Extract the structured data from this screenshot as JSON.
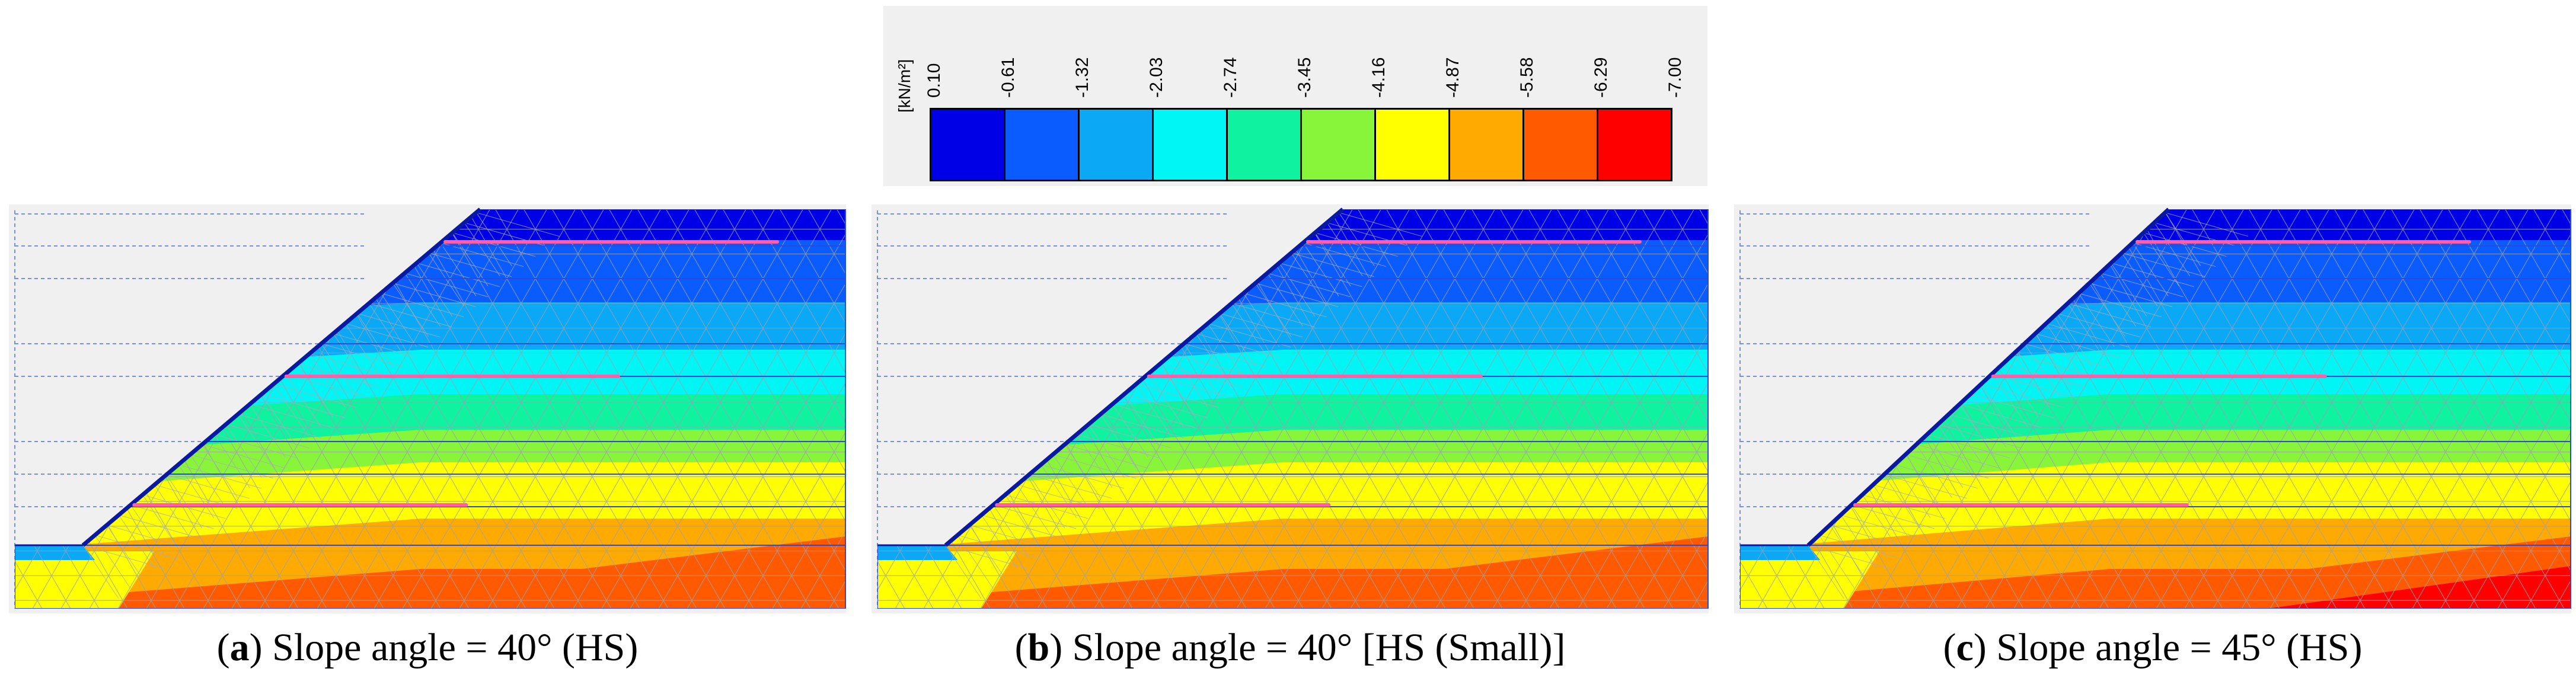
{
  "legend": {
    "unit": "[kN/m²]",
    "ticks": [
      "0.10",
      "-0.61",
      "-1.32",
      "-2.03",
      "-2.74",
      "-3.45",
      "-4.16",
      "-4.87",
      "-5.58",
      "-6.29",
      "-7.00"
    ],
    "colors": [
      "#0000e6",
      "#0a5cff",
      "#0aa8f5",
      "#00f5f5",
      "#0ff2a0",
      "#88f53a",
      "#ffff00",
      "#ffaa00",
      "#ff5a00",
      "#ff0000"
    ]
  },
  "panels": [
    {
      "id": "a",
      "letter": "a",
      "label": "Slope angle = 40° (HS)"
    },
    {
      "id": "b",
      "letter": "b",
      "label": "Slope angle = 40° [HS (Small)]"
    },
    {
      "id": "c",
      "letter": "c",
      "label": "Slope angle = 45° (HS)"
    }
  ]
}
